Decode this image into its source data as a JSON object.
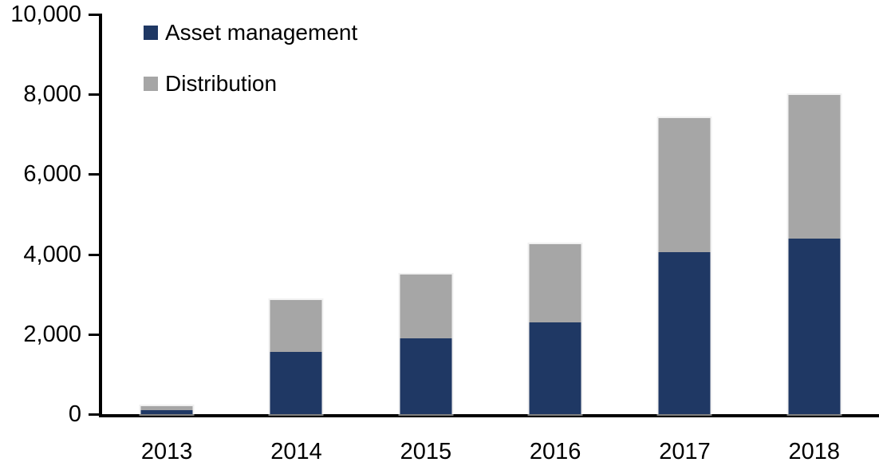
{
  "chart_data": {
    "type": "bar",
    "stacked": true,
    "title": "",
    "xlabel": "",
    "ylabel": "",
    "categories": [
      "2013",
      "2014",
      "2015",
      "2016",
      "2017",
      "2018"
    ],
    "series": [
      {
        "name": "Asset management",
        "color": "#1F3864",
        "values": [
          100,
          1550,
          1900,
          2300,
          4050,
          4400
        ]
      },
      {
        "name": "Distribution",
        "color": "#A6A6A6",
        "values": [
          100,
          1300,
          1600,
          1950,
          3350,
          3600
        ]
      }
    ],
    "totals": [
      200,
      2850,
      3500,
      4250,
      7400,
      8000
    ],
    "ylim": [
      0,
      10000
    ],
    "y_ticks": [
      0,
      2000,
      4000,
      6000,
      8000,
      10000
    ],
    "y_tick_labels": [
      "0",
      "2,000",
      "4,000",
      "6,000",
      "8,000",
      "10,000"
    ],
    "grid": false,
    "legend_position": "top-left",
    "axis_color": "#000000",
    "background_color": "#FFFFFF"
  }
}
